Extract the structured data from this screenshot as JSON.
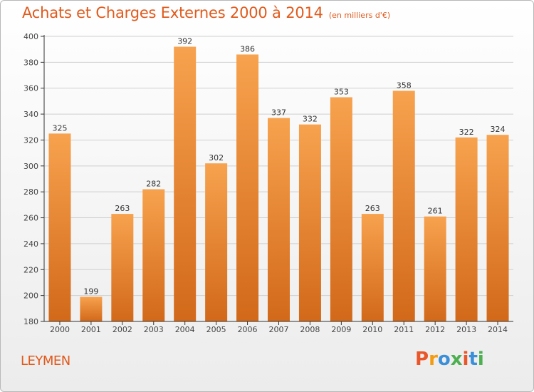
{
  "header": {
    "title": "Achats et Charges Externes 2000 à 2014",
    "subtitle": "(en milliers d'€)"
  },
  "footer": {
    "city": "LEYMEN",
    "logo": [
      "P",
      "r",
      "o",
      "x",
      "i",
      "t",
      "i"
    ],
    "logo_colors": [
      "#e8562a",
      "#f39c12",
      "#3a8fd8",
      "#4caf50",
      "#e8562a",
      "#3a8fd8",
      "#4caf50"
    ]
  },
  "colors": {
    "bar_top": "#f7a24e",
    "bar_bottom": "#d2691a",
    "axis": "#333333",
    "grid": "#cfcfcf",
    "title": "#e05a1c"
  },
  "chart_data": {
    "type": "bar",
    "title": "Achats et Charges Externes 2000 à 2014",
    "subtitle": "(en milliers d'€)",
    "categories": [
      "2000",
      "2001",
      "2002",
      "2003",
      "2004",
      "2005",
      "2006",
      "2007",
      "2008",
      "2009",
      "2010",
      "2011",
      "2012",
      "2013",
      "2014"
    ],
    "values": [
      325,
      199,
      263,
      282,
      392,
      302,
      386,
      337,
      332,
      353,
      263,
      358,
      261,
      322,
      324
    ],
    "ylim": [
      180,
      400
    ],
    "yticks": [
      180,
      200,
      220,
      240,
      260,
      280,
      300,
      320,
      340,
      360,
      380,
      400
    ],
    "grid": true,
    "data_labels": true
  }
}
